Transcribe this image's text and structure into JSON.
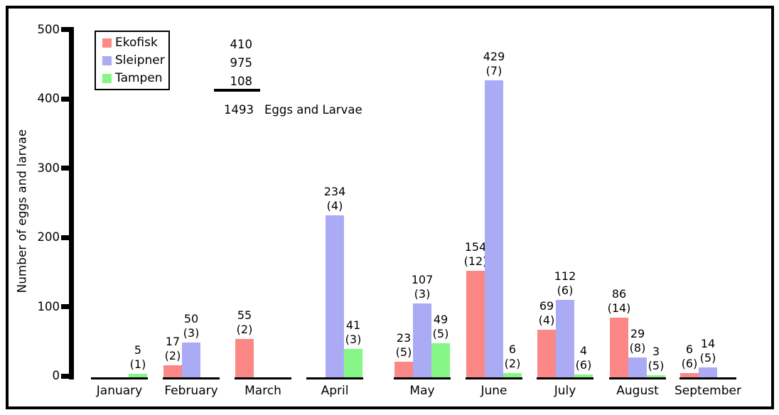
{
  "chart_data": {
    "type": "bar",
    "title": "",
    "ylabel": "Number of eggs and larvae",
    "ylim": [
      0,
      500
    ],
    "yticks": [
      0,
      100,
      200,
      300,
      400,
      500
    ],
    "grid": false,
    "legend_position": "top-left",
    "categories": [
      "January",
      "February",
      "March",
      "April",
      "May",
      "June",
      "July",
      "August",
      "September"
    ],
    "series": [
      {
        "name": "Ekofisk",
        "color": "#FB8886",
        "values": [
          null,
          17,
          55,
          null,
          23,
          154,
          69,
          86,
          6
        ],
        "counts": [
          null,
          2,
          2,
          null,
          5,
          12,
          4,
          14,
          6
        ],
        "total": 410
      },
      {
        "name": "Sleipner",
        "color": "#ABABF5",
        "values": [
          null,
          50,
          null,
          234,
          107,
          429,
          112,
          29,
          14
        ],
        "counts": [
          null,
          3,
          null,
          4,
          3,
          7,
          6,
          8,
          5
        ],
        "total": 975
      },
      {
        "name": "Tampen",
        "color": "#86F786",
        "values": [
          5,
          null,
          null,
          41,
          49,
          6,
          4,
          3,
          null
        ],
        "counts": [
          1,
          null,
          null,
          3,
          5,
          2,
          6,
          5,
          null
        ],
        "total": 108
      }
    ],
    "grand_total": 1493,
    "grand_total_label": "Eggs and Larvae"
  }
}
